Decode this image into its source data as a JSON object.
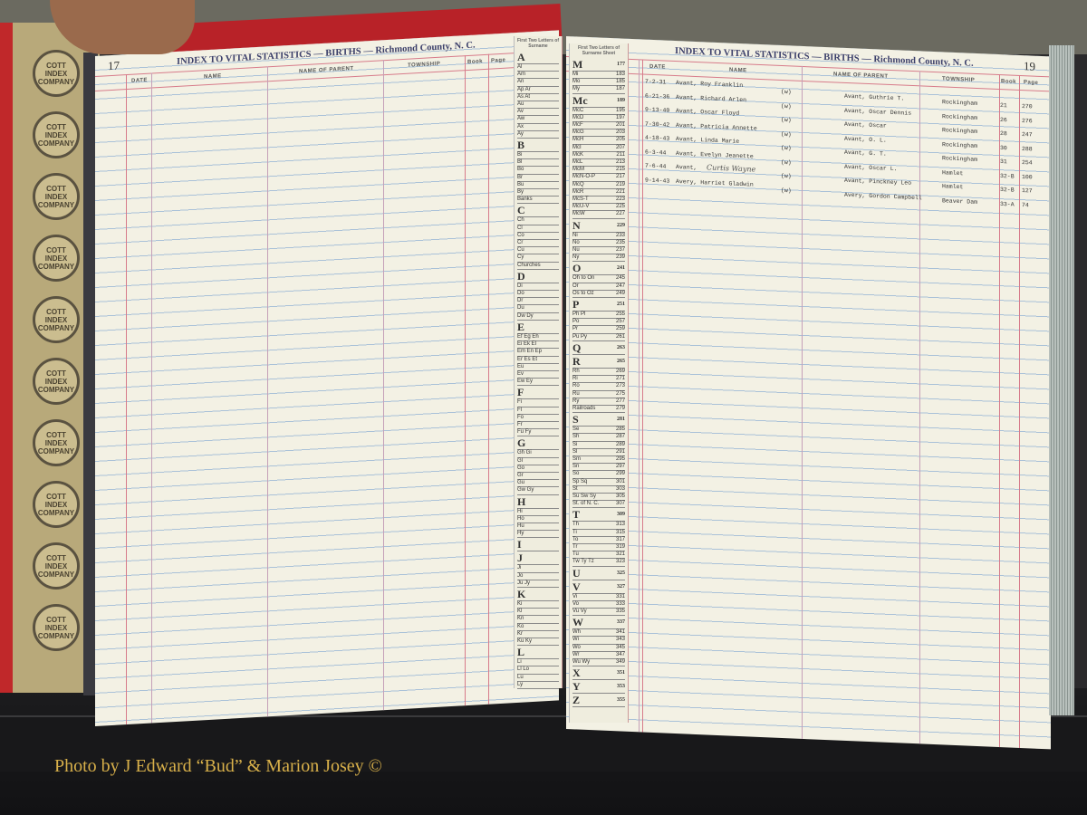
{
  "caption": "Photo by J Edward “Bud” & Marion Josey ©",
  "cover_seal_text": "COTT INDEX COMPANY",
  "left_page": {
    "title": "INDEX TO VITAL STATISTICS — BIRTHS — Richmond County, N. C.",
    "page_number": "17",
    "columns": {
      "date": "DATE",
      "name": "NAME",
      "parent": "NAME OF PARENT",
      "township": "TOWNSHIP",
      "book": "Book",
      "page": "Page"
    }
  },
  "right_page": {
    "title": "INDEX TO VITAL STATISTICS — BIRTHS — Richmond County, N. C.",
    "page_number": "19",
    "columns": {
      "date": "DATE",
      "name": "NAME",
      "parent": "NAME OF PARENT",
      "township": "TOWNSHIP",
      "book": "Book",
      "page": "Page"
    },
    "entries": [
      {
        "date": "7-2-31",
        "name": "Avant, Roy Franklin",
        "race": "(w)",
        "parent": "Avant, Guthrie T.",
        "township": "Rockingham",
        "book": "21",
        "page": "270"
      },
      {
        "date": "6-21-36",
        "name": "Avant, Richard Arlen",
        "race": "(w)",
        "parent": "Avant, Oscar Dennis",
        "township": "Rockingham",
        "book": "26",
        "page": "276"
      },
      {
        "date": "9-13-40",
        "name": "Avant, Oscar Floyd",
        "race": "(w)",
        "parent": "Avant, Oscar",
        "township": "Rockingham",
        "book": "28",
        "page": "247"
      },
      {
        "date": "7-30-42",
        "name": "Avant, Patricia Annette",
        "race": "(w)",
        "parent": "Avant, O. L.",
        "township": "Rockingham",
        "book": "30",
        "page": "288"
      },
      {
        "date": "4-18-43",
        "name": "Avant, Linda Marie",
        "race": "(w)",
        "parent": "Avant, G. T.",
        "township": "Rockingham",
        "book": "31",
        "page": "254"
      },
      {
        "date": "6-3-44",
        "name": "Avant, Evelyn Jeanette",
        "race": "(w)",
        "parent": "Avant, Oscar L.",
        "township": "Hamlet",
        "book": "32-B",
        "page": "100"
      },
      {
        "date": "7-6-44",
        "name": "Avant,",
        "name_handwritten": "Curtis Wayne",
        "race": "(w)",
        "parent": "Avant, Pinckney Leo",
        "township": "Hamlet",
        "book": "32-B",
        "page": "127"
      },
      {
        "date": "9-14-43",
        "name": "Avery, Harriet Gladwin",
        "race": "(w)",
        "parent": "Avery, Gordon Campbell",
        "township": "Beaver Dam",
        "book": "33-A",
        "page": "74"
      }
    ]
  },
  "left_tab": {
    "heading": "First Two Letters of Surname",
    "items": [
      "A",
      "Al",
      "Am",
      "An",
      "Ap Ar",
      "As At",
      "Au",
      "Av",
      "Aw",
      "Ax",
      "Ay",
      "B",
      "Bi",
      "Bl",
      "Bo",
      "Br",
      "Bu",
      "By",
      "Banks",
      "C",
      "Ch",
      "Cl",
      "Co",
      "Cr",
      "Cu",
      "Cy",
      "Churches",
      "D",
      "Di",
      "Do",
      "Dr",
      "Du",
      "Dw Dy",
      "E",
      "Ef Eg Eh",
      "Ei Ek El",
      "Em En Ep",
      "Er Es Et",
      "Eu",
      "Ev",
      "Ew Ey",
      "F",
      "Fi",
      "Fl",
      "Fo",
      "Fr",
      "Fu Fy",
      "G",
      "Gh Gi",
      "Gl",
      "Go",
      "Gr",
      "Gu",
      "Gw Gy",
      "H",
      "Hi",
      "Ho",
      "Hu",
      "Hy",
      "I",
      "J",
      "Ji",
      "Jo",
      "Ju Jy",
      "K",
      "Ki",
      "Kl",
      "Kn",
      "Ko",
      "Kr",
      "Ku Ky",
      "L",
      "Li",
      "Ll Lo",
      "Lu",
      "Ly"
    ]
  },
  "right_tab": {
    "heading": "First Two Letters of Surname Sheet",
    "items": [
      {
        "label": "M",
        "page": "177"
      },
      {
        "label": "Mi",
        "page": "183"
      },
      {
        "label": "Mo",
        "page": "185"
      },
      {
        "label": "My",
        "page": "187"
      },
      {
        "label": "Mc",
        "page": "189"
      },
      {
        "label": "McC",
        "page": "195"
      },
      {
        "label": "McD",
        "page": "197"
      },
      {
        "label": "McF",
        "page": "201"
      },
      {
        "label": "McG",
        "page": "203"
      },
      {
        "label": "McH",
        "page": "205"
      },
      {
        "label": "McI",
        "page": "207"
      },
      {
        "label": "McK",
        "page": "211"
      },
      {
        "label": "McL",
        "page": "213"
      },
      {
        "label": "McM",
        "page": "215"
      },
      {
        "label": "McN-O-P",
        "page": "217"
      },
      {
        "label": "McQ",
        "page": "219"
      },
      {
        "label": "McR",
        "page": "221"
      },
      {
        "label": "McS-T",
        "page": "223"
      },
      {
        "label": "McU-V",
        "page": "225"
      },
      {
        "label": "McW",
        "page": "227"
      },
      {
        "label": "N",
        "page": "229"
      },
      {
        "label": "Ni",
        "page": "233"
      },
      {
        "label": "No",
        "page": "235"
      },
      {
        "label": "Nu",
        "page": "237"
      },
      {
        "label": "Ny",
        "page": "239"
      },
      {
        "label": "O",
        "page": "241"
      },
      {
        "label": "Oh to On",
        "page": "245"
      },
      {
        "label": "Or",
        "page": "247"
      },
      {
        "label": "Os to Oz",
        "page": "249"
      },
      {
        "label": "P",
        "page": "251"
      },
      {
        "label": "Ph Pl",
        "page": "255"
      },
      {
        "label": "Po",
        "page": "257"
      },
      {
        "label": "Pr",
        "page": "259"
      },
      {
        "label": "Pu Py",
        "page": "261"
      },
      {
        "label": "Q",
        "page": "263"
      },
      {
        "label": "R",
        "page": "265"
      },
      {
        "label": "Rh",
        "page": "269"
      },
      {
        "label": "Ri",
        "page": "271"
      },
      {
        "label": "Ro",
        "page": "273"
      },
      {
        "label": "Ru",
        "page": "275"
      },
      {
        "label": "Ry",
        "page": "277"
      },
      {
        "label": "Railroads",
        "page": "279"
      },
      {
        "label": "S",
        "page": "281"
      },
      {
        "label": "Se",
        "page": "285"
      },
      {
        "label": "Sh",
        "page": "287"
      },
      {
        "label": "Si",
        "page": "289"
      },
      {
        "label": "Sl",
        "page": "291"
      },
      {
        "label": "Sm",
        "page": "295"
      },
      {
        "label": "Sn",
        "page": "297"
      },
      {
        "label": "So",
        "page": "299"
      },
      {
        "label": "Sp Sq",
        "page": "301"
      },
      {
        "label": "St",
        "page": "303"
      },
      {
        "label": "Su Sw Sy",
        "page": "305"
      },
      {
        "label": "St. of N. C.",
        "page": "307"
      },
      {
        "label": "T",
        "page": "309"
      },
      {
        "label": "Th",
        "page": "313"
      },
      {
        "label": "Ti",
        "page": "315"
      },
      {
        "label": "To",
        "page": "317"
      },
      {
        "label": "Tr",
        "page": "319"
      },
      {
        "label": "Tu",
        "page": "321"
      },
      {
        "label": "Tw Ty Tz",
        "page": "323"
      },
      {
        "label": "U",
        "page": "325"
      },
      {
        "label": "V",
        "page": "327"
      },
      {
        "label": "Vi",
        "page": "331"
      },
      {
        "label": "Vo",
        "page": "333"
      },
      {
        "label": "Vu Vy",
        "page": "335"
      },
      {
        "label": "W",
        "page": "337"
      },
      {
        "label": "Wh",
        "page": "341"
      },
      {
        "label": "Wi",
        "page": "343"
      },
      {
        "label": "Wo",
        "page": "345"
      },
      {
        "label": "Wr",
        "page": "347"
      },
      {
        "label": "Wu Wy",
        "page": "349"
      },
      {
        "label": "X",
        "page": "351"
      },
      {
        "label": "Y",
        "page": "353"
      },
      {
        "label": "Z",
        "page": "355"
      }
    ]
  }
}
